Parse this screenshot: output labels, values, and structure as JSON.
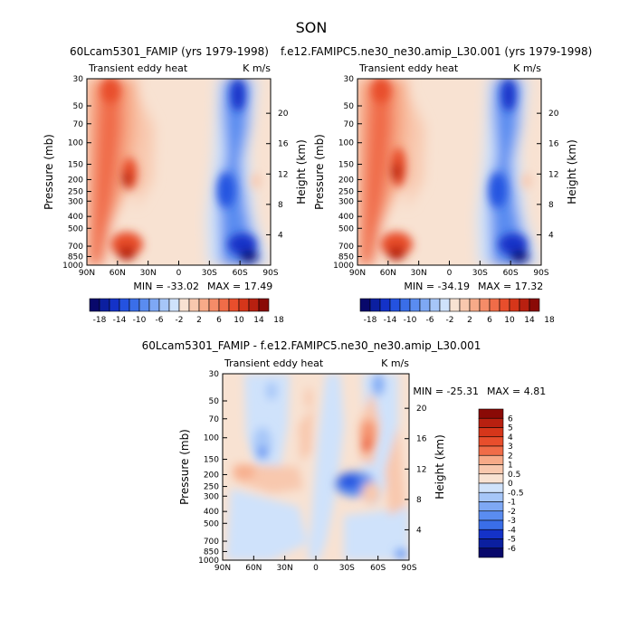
{
  "title": "SON",
  "chart_data": [
    {
      "type": "heatmap",
      "title": "60Lcam5301_FAMIP (yrs 1979-1998)",
      "left_label": "Transient eddy heat",
      "right_label": "K m/s",
      "xlabel": "",
      "ylabel": "Pressure (mb)",
      "ylabel_right": "Height (km)",
      "x_ticks": [
        "90N",
        "60N",
        "30N",
        "0",
        "30S",
        "60S",
        "90S"
      ],
      "y_ticks": [
        "30",
        "50",
        "70",
        "100",
        "150",
        "200",
        "250",
        "300",
        "400",
        "500",
        "700",
        "850",
        "1000"
      ],
      "y_ticks_right": [
        "20",
        "16",
        "12",
        "8",
        "4"
      ],
      "min_label": "MIN = -33.02",
      "max_label": "MAX = 17.49",
      "colorbar_labels": [
        "-18",
        "-14",
        "-10",
        "-6",
        "-2",
        "2",
        "6",
        "10",
        "14",
        "18"
      ],
      "colorbar_levels": [
        -18,
        -16,
        -14,
        -12,
        -10,
        -8,
        -6,
        -4,
        -2,
        0,
        2,
        4,
        6,
        8,
        10,
        12,
        14,
        16,
        18
      ]
    },
    {
      "type": "heatmap",
      "title": "f.e12.FAMIPC5.ne30_ne30.amip_L30.001 (yrs 1979-1998)",
      "left_label": "Transient eddy heat",
      "right_label": "K m/s",
      "xlabel": "",
      "ylabel": "Pressure (mb)",
      "ylabel_right": "Height (km)",
      "x_ticks": [
        "90N",
        "60N",
        "30N",
        "0",
        "30S",
        "60S",
        "90S"
      ],
      "y_ticks": [
        "30",
        "50",
        "70",
        "100",
        "150",
        "200",
        "250",
        "300",
        "400",
        "500",
        "700",
        "850",
        "1000"
      ],
      "y_ticks_right": [
        "20",
        "16",
        "12",
        "8",
        "4"
      ],
      "min_label": "MIN = -34.19",
      "max_label": "MAX = 17.32",
      "colorbar_labels": [
        "-18",
        "-14",
        "-10",
        "-6",
        "-2",
        "2",
        "6",
        "10",
        "14",
        "18"
      ],
      "colorbar_levels": [
        -18,
        -16,
        -14,
        -12,
        -10,
        -8,
        -6,
        -4,
        -2,
        0,
        2,
        4,
        6,
        8,
        10,
        12,
        14,
        16,
        18
      ]
    },
    {
      "type": "heatmap",
      "title": "60Lcam5301_FAMIP - f.e12.FAMIPC5.ne30_ne30.amip_L30.001",
      "left_label": "Transient eddy heat",
      "right_label": "K m/s",
      "xlabel": "",
      "ylabel": "Pressure (mb)",
      "ylabel_right": "Height (km)",
      "x_ticks": [
        "90N",
        "60N",
        "30N",
        "0",
        "30S",
        "60S",
        "90S"
      ],
      "y_ticks": [
        "30",
        "50",
        "70",
        "100",
        "150",
        "200",
        "250",
        "300",
        "400",
        "500",
        "700",
        "850",
        "1000"
      ],
      "y_ticks_right": [
        "20",
        "16",
        "12",
        "8",
        "4"
      ],
      "min_label": "MIN = -25.31",
      "max_label": "MAX =   4.81",
      "colorbar_labels": [
        "6",
        "5",
        "4",
        "3",
        "2",
        "1",
        "0.5",
        "0",
        "-0.5",
        "-1",
        "-2",
        "-3",
        "-4",
        "-5",
        "-6"
      ],
      "colorbar_levels": [
        6,
        5,
        4,
        3,
        2,
        1,
        0.5,
        0,
        -0.5,
        -1,
        -2,
        -3,
        -4,
        -5,
        -6
      ]
    }
  ],
  "palette": [
    "#08086b",
    "#0b1fa0",
    "#1432c8",
    "#2452e0",
    "#3a6ee8",
    "#5a8cf0",
    "#7ea8f4",
    "#a6c6f8",
    "#cfe2fb",
    "#f8e2d2",
    "#f8c8ae",
    "#f7aa88",
    "#f48c68",
    "#f06c48",
    "#e84e2c",
    "#d6361a",
    "#b82010",
    "#8a0a06"
  ]
}
